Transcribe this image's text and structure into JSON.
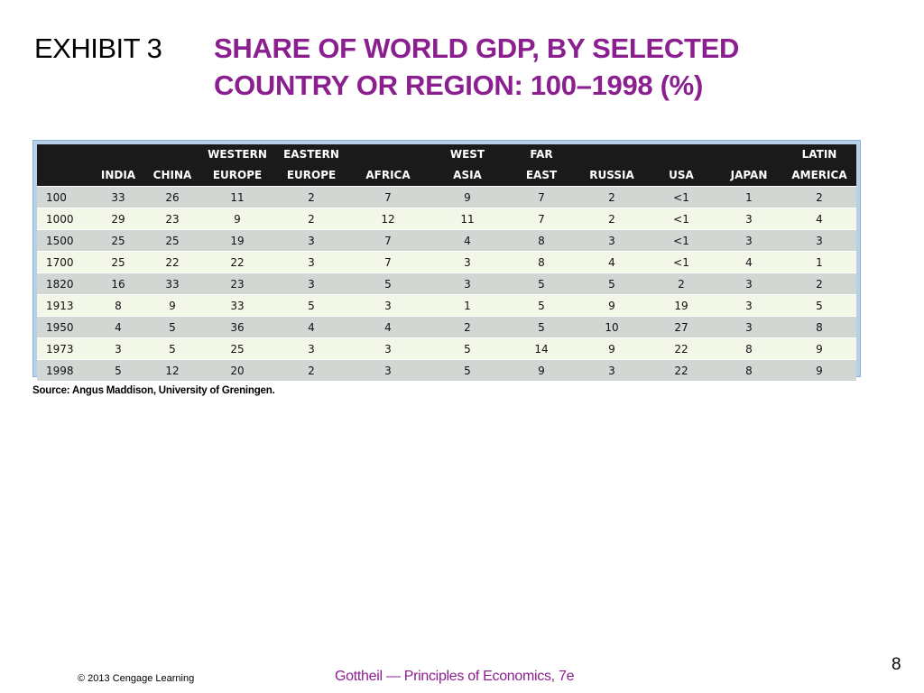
{
  "slide": {
    "exhibit_label": "EXHIBIT 3",
    "title_line1": "SHARE OF WORLD GDP, BY SELECTED",
    "title_line2": "COUNTRY OR REGION: 100–1998 (%)",
    "source": "Source: Angus Maddison, University of Greningen.",
    "page_number": "8",
    "copyright": "© 2013 Cengage Learning",
    "footer_title": "Gottheil — Principles of Economics, 7e"
  },
  "colors": {
    "title": "#8b1f8f",
    "header_bg": "#1a1a1a",
    "row_odd": "#d2d7d3",
    "row_even": "#f2f7e8",
    "frame": "#b9cfe8"
  },
  "table": {
    "headers": [
      {
        "top": "",
        "bottom": ""
      },
      {
        "top": "",
        "bottom": "INDIA"
      },
      {
        "top": "",
        "bottom": "CHINA"
      },
      {
        "top": "WESTERN",
        "bottom": "EUROPE"
      },
      {
        "top": "EASTERN",
        "bottom": "EUROPE"
      },
      {
        "top": "",
        "bottom": "AFRICA"
      },
      {
        "top": "WEST",
        "bottom": "ASIA"
      },
      {
        "top": "FAR",
        "bottom": "EAST"
      },
      {
        "top": "",
        "bottom": "RUSSIA"
      },
      {
        "top": "",
        "bottom": "USA"
      },
      {
        "top": "",
        "bottom": "JAPAN"
      },
      {
        "top": "LATIN",
        "bottom": "AMERICA"
      }
    ],
    "rows": [
      [
        "100",
        "33",
        "26",
        "11",
        "2",
        "7",
        "9",
        "7",
        "2",
        "<1",
        "1",
        "2"
      ],
      [
        "1000",
        "29",
        "23",
        "9",
        "2",
        "12",
        "11",
        "7",
        "2",
        "<1",
        "3",
        "4"
      ],
      [
        "1500",
        "25",
        "25",
        "19",
        "3",
        "7",
        "4",
        "8",
        "3",
        "<1",
        "3",
        "3"
      ],
      [
        "1700",
        "25",
        "22",
        "22",
        "3",
        "7",
        "3",
        "8",
        "4",
        "<1",
        "4",
        "1"
      ],
      [
        "1820",
        "16",
        "33",
        "23",
        "3",
        "5",
        "3",
        "5",
        "5",
        "2",
        "3",
        "2"
      ],
      [
        "1913",
        "8",
        "9",
        "33",
        "5",
        "3",
        "1",
        "5",
        "9",
        "19",
        "3",
        "5"
      ],
      [
        "1950",
        "4",
        "5",
        "36",
        "4",
        "4",
        "2",
        "5",
        "10",
        "27",
        "3",
        "8"
      ],
      [
        "1973",
        "3",
        "5",
        "25",
        "3",
        "3",
        "5",
        "14",
        "9",
        "22",
        "8",
        "9"
      ],
      [
        "1998",
        "5",
        "12",
        "20",
        "2",
        "3",
        "5",
        "9",
        "3",
        "22",
        "8",
        "9"
      ]
    ]
  }
}
